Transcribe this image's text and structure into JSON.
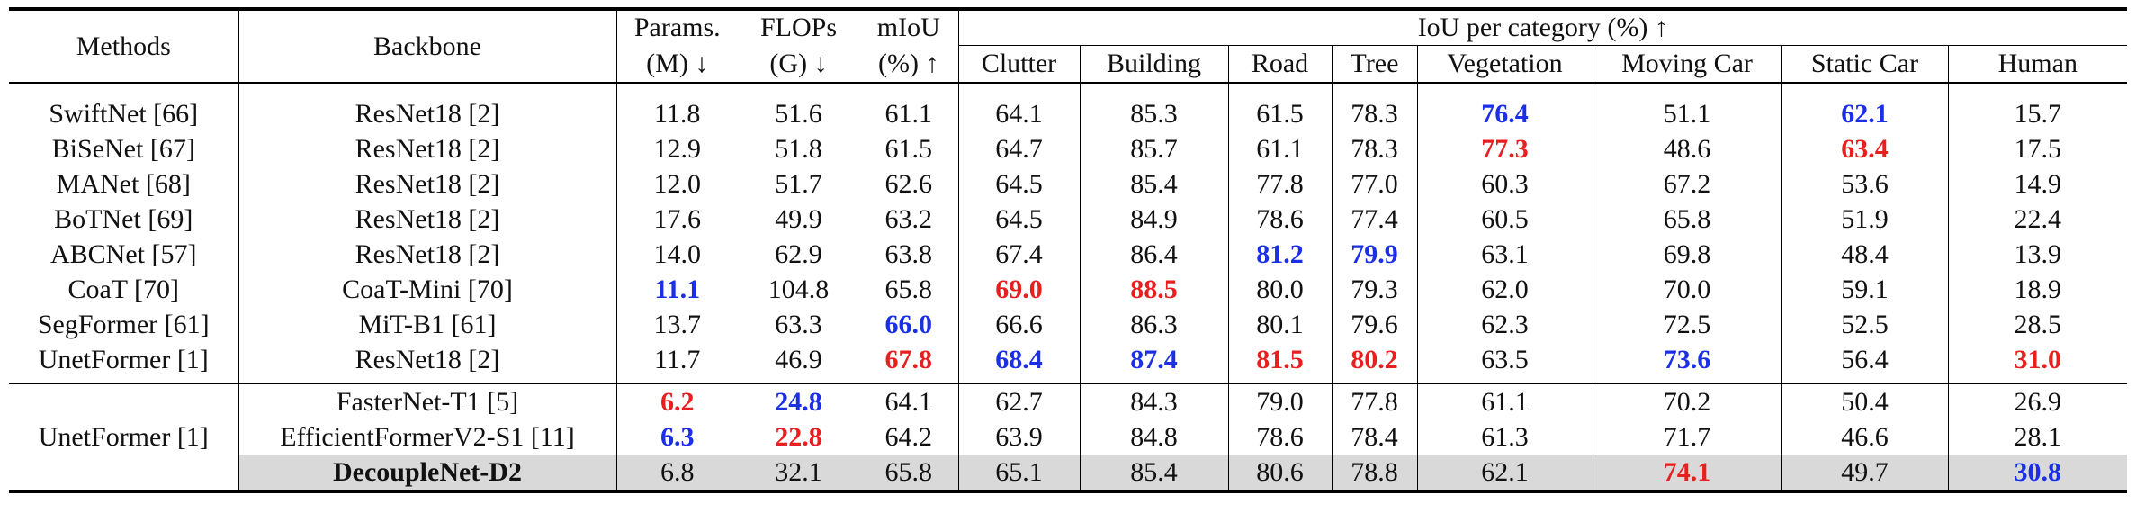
{
  "headers": {
    "methods": "Methods",
    "backbone": "Backbone",
    "params_l1": "Params.",
    "params_l2": "(M) ↓",
    "flops_l1": "FLOPs",
    "flops_l2": "(G) ↓",
    "miou_l1": "mIoU",
    "miou_l2": "(%) ↑",
    "iou_group": "IoU per category (%) ↑",
    "categories": [
      "Clutter",
      "Building",
      "Road",
      "Tree",
      "Vegetation",
      "Moving Car",
      "Static Car",
      "Human"
    ]
  },
  "highlight_colors": {
    "best": "#e81f1f",
    "second": "#1a2fe6",
    "row_highlight": "#d9d9d9"
  },
  "rows": [
    {
      "method": "SwiftNet [66]",
      "backbone": "ResNet18 [2]",
      "params": "11.8",
      "flops": "51.6",
      "miou": "61.1",
      "clutter": "64.1",
      "building": "85.3",
      "road": "61.5",
      "tree": "78.3",
      "vegetation": "76.4",
      "moving_car": "51.1",
      "static_car": "62.1",
      "human": "15.7"
    },
    {
      "method": "BiSeNet [67]",
      "backbone": "ResNet18 [2]",
      "params": "12.9",
      "flops": "51.8",
      "miou": "61.5",
      "clutter": "64.7",
      "building": "85.7",
      "road": "61.1",
      "tree": "78.3",
      "vegetation": "77.3",
      "moving_car": "48.6",
      "static_car": "63.4",
      "human": "17.5"
    },
    {
      "method": "MANet [68]",
      "backbone": "ResNet18 [2]",
      "params": "12.0",
      "flops": "51.7",
      "miou": "62.6",
      "clutter": "64.5",
      "building": "85.4",
      "road": "77.8",
      "tree": "77.0",
      "vegetation": "60.3",
      "moving_car": "67.2",
      "static_car": "53.6",
      "human": "14.9"
    },
    {
      "method": "BoTNet [69]",
      "backbone": "ResNet18 [2]",
      "params": "17.6",
      "flops": "49.9",
      "miou": "63.2",
      "clutter": "64.5",
      "building": "84.9",
      "road": "78.6",
      "tree": "77.4",
      "vegetation": "60.5",
      "moving_car": "65.8",
      "static_car": "51.9",
      "human": "22.4"
    },
    {
      "method": "ABCNet [57]",
      "backbone": "ResNet18 [2]",
      "params": "14.0",
      "flops": "62.9",
      "miou": "63.8",
      "clutter": "67.4",
      "building": "86.4",
      "road": "81.2",
      "tree": "79.9",
      "vegetation": "63.1",
      "moving_car": "69.8",
      "static_car": "48.4",
      "human": "13.9"
    },
    {
      "method": "CoaT [70]",
      "backbone": "CoaT-Mini [70]",
      "params": "11.1",
      "flops": "104.8",
      "miou": "65.8",
      "clutter": "69.0",
      "building": "88.5",
      "road": "80.0",
      "tree": "79.3",
      "vegetation": "62.0",
      "moving_car": "70.0",
      "static_car": "59.1",
      "human": "18.9"
    },
    {
      "method": "SegFormer [61]",
      "backbone": "MiT-B1 [61]",
      "params": "13.7",
      "flops": "63.3",
      "miou": "66.0",
      "clutter": "66.6",
      "building": "86.3",
      "road": "80.1",
      "tree": "79.6",
      "vegetation": "62.3",
      "moving_car": "72.5",
      "static_car": "52.5",
      "human": "28.5"
    },
    {
      "method": "UnetFormer [1]",
      "backbone": "ResNet18 [2]",
      "params": "11.7",
      "flops": "46.9",
      "miou": "67.8",
      "clutter": "68.4",
      "building": "87.4",
      "road": "81.5",
      "tree": "80.2",
      "vegetation": "63.5",
      "moving_car": "73.6",
      "static_car": "56.4",
      "human": "31.0"
    },
    {
      "method": "",
      "backbone": "FasterNet-T1 [5]",
      "params": "6.2",
      "flops": "24.8",
      "miou": "64.1",
      "clutter": "62.7",
      "building": "84.3",
      "road": "79.0",
      "tree": "77.8",
      "vegetation": "61.1",
      "moving_car": "70.2",
      "static_car": "50.4",
      "human": "26.9"
    },
    {
      "method": "UnetFormer [1]",
      "backbone": "EfficientFormerV2-S1 [11]",
      "params": "6.3",
      "flops": "22.8",
      "miou": "64.2",
      "clutter": "63.9",
      "building": "84.8",
      "road": "78.6",
      "tree": "78.4",
      "vegetation": "61.3",
      "moving_car": "71.7",
      "static_car": "46.6",
      "human": "28.1"
    },
    {
      "method": "",
      "backbone": "DecoupleNet-D2",
      "params": "6.8",
      "flops": "32.1",
      "miou": "65.8",
      "clutter": "65.1",
      "building": "85.4",
      "road": "80.6",
      "tree": "78.8",
      "vegetation": "62.1",
      "moving_car": "74.1",
      "static_car": "49.7",
      "human": "30.8"
    }
  ]
}
